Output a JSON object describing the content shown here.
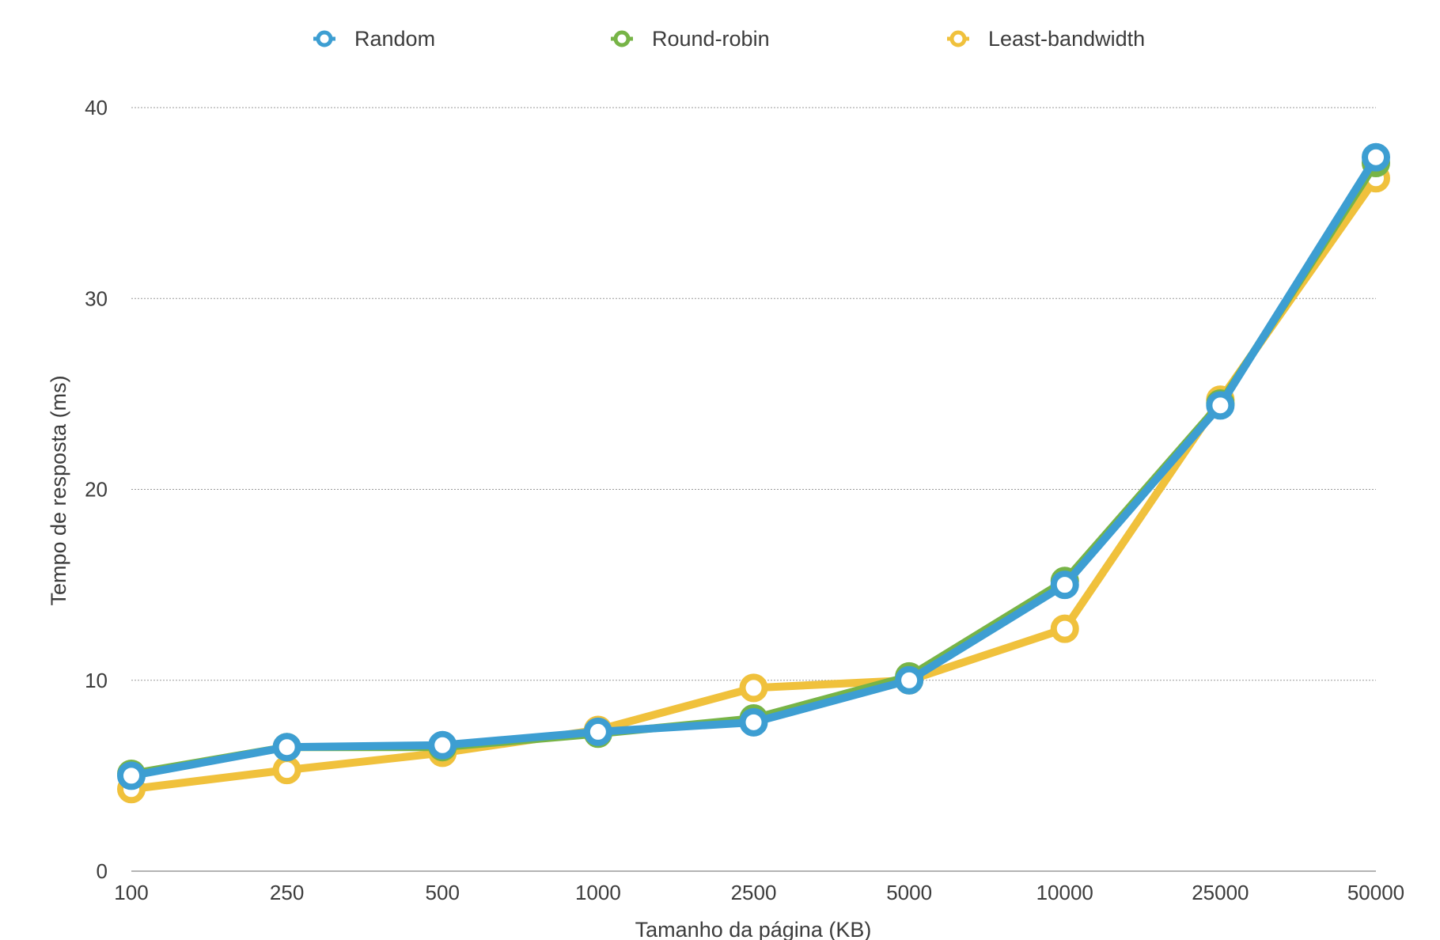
{
  "chart_data": {
    "type": "line",
    "title": "",
    "xlabel": "Tamanho da página (KB)",
    "ylabel": "Tempo de resposta (ms)",
    "categories": [
      "100",
      "250",
      "500",
      "1000",
      "2500",
      "5000",
      "10000",
      "25000",
      "50000"
    ],
    "ylim": [
      0,
      40
    ],
    "yticks": [
      0,
      10,
      20,
      30,
      40
    ],
    "grid": true,
    "legend_position": "top-center",
    "series": [
      {
        "name": "Least-bandwidth",
        "color": "#f0c13c",
        "values": [
          4.3,
          5.3,
          6.2,
          7.4,
          9.6,
          10.0,
          12.7,
          24.7,
          36.3
        ]
      },
      {
        "name": "Round-robin",
        "color": "#77b447",
        "values": [
          5.1,
          6.5,
          6.5,
          7.2,
          8.0,
          10.2,
          15.2,
          24.5,
          37.1
        ]
      },
      {
        "name": "Random",
        "color": "#3d9ed2",
        "values": [
          5.0,
          6.5,
          6.6,
          7.3,
          7.8,
          10.0,
          15.0,
          24.4,
          37.4
        ]
      }
    ],
    "legend_order": [
      "Random",
      "Round-robin",
      "Least-bandwidth"
    ]
  }
}
